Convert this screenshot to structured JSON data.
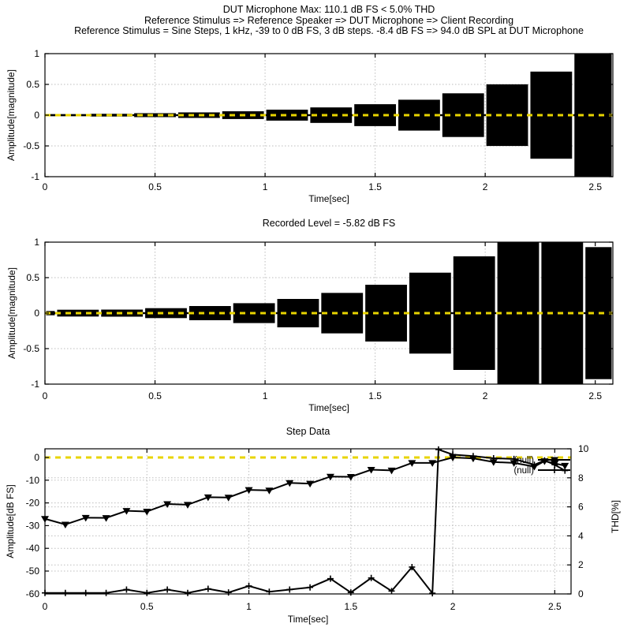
{
  "colors": {
    "series": "#000000",
    "zero_line": "#e8d400",
    "grid": "#bdbdbd",
    "background": "#ffffff",
    "text": "#000000"
  },
  "chart_data": [
    {
      "id": "stimulus-waveform",
      "type": "area",
      "title_lines": [
        "DUT Microphone Max: 110.1 dB FS < 5.0% THD",
        "Reference Stimulus => Reference Speaker => DUT Microphone => Client Recording",
        "Reference Stimulus = Sine Steps, 1 kHz, -39 to 0 dB FS, 3 dB steps. -8.4 dB FS => 94.0 dB SPL at DUT Microphone"
      ],
      "xlabel": "Time[sec]",
      "ylabel": "Amplitude[magnitude]",
      "xlim": [
        0,
        2.58
      ],
      "ylim": [
        -1,
        1
      ],
      "xtick_labels": [
        "0",
        "0.5",
        "1",
        "1.5",
        "2",
        "2.5"
      ],
      "xtick_values": [
        0,
        0.5,
        1,
        1.5,
        2,
        2.5
      ],
      "ytick_labels": [
        "-1",
        "-0.5",
        "0",
        "0.5",
        "1"
      ],
      "ytick_values": [
        -1,
        -0.5,
        0,
        0.5,
        1
      ],
      "grid_y_values": [
        -0.5,
        0.5
      ],
      "zero_line_value": 0,
      "steps": [
        {
          "t0": 0.0,
          "t1": 0.2,
          "amp": 0.016
        },
        {
          "t0": 0.2,
          "t1": 0.4,
          "amp": 0.022
        },
        {
          "t0": 0.4,
          "t1": 0.6,
          "amp": 0.032
        },
        {
          "t0": 0.6,
          "t1": 0.8,
          "amp": 0.045
        },
        {
          "t0": 0.8,
          "t1": 1.0,
          "amp": 0.063
        },
        {
          "t0": 1.0,
          "t1": 1.2,
          "amp": 0.089
        },
        {
          "t0": 1.2,
          "t1": 1.4,
          "amp": 0.126
        },
        {
          "t0": 1.4,
          "t1": 1.6,
          "amp": 0.178
        },
        {
          "t0": 1.6,
          "t1": 1.8,
          "amp": 0.251
        },
        {
          "t0": 1.8,
          "t1": 2.0,
          "amp": 0.355
        },
        {
          "t0": 2.0,
          "t1": 2.2,
          "amp": 0.501
        },
        {
          "t0": 2.2,
          "t1": 2.4,
          "amp": 0.708
        },
        {
          "t0": 2.4,
          "t1": 2.58,
          "amp": 1.0
        }
      ]
    },
    {
      "id": "recorded-waveform",
      "type": "area",
      "title": "Recorded Level = -5.82 dB FS",
      "xlabel": "Time[sec]",
      "ylabel": "Amplitude[magnitude]",
      "xlim": [
        0,
        2.58
      ],
      "ylim": [
        -1,
        1
      ],
      "xtick_labels": [
        "0",
        "0.5",
        "1",
        "1.5",
        "2",
        "2.5"
      ],
      "xtick_values": [
        0,
        0.5,
        1,
        1.5,
        2,
        2.5
      ],
      "ytick_labels": [
        "-1",
        "-0.5",
        "0",
        "0.5",
        "1"
      ],
      "ytick_values": [
        -1,
        -0.5,
        0,
        0.5,
        1
      ],
      "grid_y_values": [
        -0.5,
        0.5
      ],
      "zero_line_value": 0,
      "steps": [
        {
          "t0": 0.0,
          "t1": 0.05,
          "amp": 0.03
        },
        {
          "t0": 0.05,
          "t1": 0.25,
          "amp": 0.048
        },
        {
          "t0": 0.25,
          "t1": 0.45,
          "amp": 0.05
        },
        {
          "t0": 0.45,
          "t1": 0.65,
          "amp": 0.07
        },
        {
          "t0": 0.65,
          "t1": 0.85,
          "amp": 0.1
        },
        {
          "t0": 0.85,
          "t1": 1.05,
          "amp": 0.14
        },
        {
          "t0": 1.05,
          "t1": 1.25,
          "amp": 0.2
        },
        {
          "t0": 1.25,
          "t1": 1.45,
          "amp": 0.285
        },
        {
          "t0": 1.45,
          "t1": 1.65,
          "amp": 0.4
        },
        {
          "t0": 1.65,
          "t1": 1.85,
          "amp": 0.57
        },
        {
          "t0": 1.85,
          "t1": 2.05,
          "amp": 0.8
        },
        {
          "t0": 2.05,
          "t1": 2.25,
          "amp": 1.0
        },
        {
          "t0": 2.25,
          "t1": 2.45,
          "amp": 1.0
        },
        {
          "t0": 2.45,
          "t1": 2.58,
          "amp": 0.93
        }
      ]
    },
    {
      "id": "step-data",
      "type": "line",
      "title": "Step Data",
      "xlabel": "Time[sec]",
      "ylabel_left": "Amplitude[dB FS]",
      "ylabel_right": "THD[%]",
      "xlim": [
        0,
        2.58
      ],
      "ylim_left": [
        -60,
        3.8
      ],
      "ylim_right": [
        0,
        10
      ],
      "xtick_labels": [
        "0",
        "0.5",
        "1",
        "1.5",
        "2",
        "2.5"
      ],
      "xtick_values": [
        0,
        0.5,
        1,
        1.5,
        2,
        2.5
      ],
      "ytick_left_labels": [
        "0",
        "-10",
        "-20",
        "-30",
        "-40",
        "-50",
        "-60"
      ],
      "ytick_left_values": [
        0,
        -10,
        -20,
        -30,
        -40,
        -50,
        -60
      ],
      "ytick_right_labels": [
        "10",
        "8",
        "6",
        "4",
        "2",
        "0"
      ],
      "ytick_right_values": [
        10,
        8,
        6,
        4,
        2,
        0
      ],
      "grid_left_values": [
        -10,
        -20,
        -30,
        -40,
        -50
      ],
      "grid_right_values": [
        2,
        4,
        6,
        8
      ],
      "zero_line_value": 0,
      "legend": {
        "position": "top-right",
        "entries": [
          {
            "label": "(null)",
            "marker": "triangle-down"
          },
          {
            "label": "(null)",
            "marker": "plus"
          }
        ]
      },
      "series": [
        {
          "name": "(null)",
          "axis": "left",
          "marker": "triangle-down",
          "points": [
            [
              0.0,
              -27
            ],
            [
              0.1,
              -29.5
            ],
            [
              0.2,
              -26.5
            ],
            [
              0.3,
              -26.6
            ],
            [
              0.4,
              -23.5
            ],
            [
              0.5,
              -23.8
            ],
            [
              0.6,
              -20.5
            ],
            [
              0.7,
              -20.8
            ],
            [
              0.8,
              -17.5
            ],
            [
              0.9,
              -17.6
            ],
            [
              1.0,
              -14.3
            ],
            [
              1.1,
              -14.5
            ],
            [
              1.2,
              -11.2
            ],
            [
              1.3,
              -11.5
            ],
            [
              1.4,
              -8.4
            ],
            [
              1.5,
              -8.5
            ],
            [
              1.6,
              -5.4
            ],
            [
              1.7,
              -5.7
            ],
            [
              1.8,
              -2.4
            ],
            [
              1.9,
              -2.4
            ],
            [
              2.0,
              0.0
            ],
            [
              2.1,
              -0.4
            ],
            [
              2.2,
              -2.0
            ],
            [
              2.3,
              -2.4
            ],
            [
              2.4,
              -4.0
            ],
            [
              2.45,
              -1.6
            ],
            [
              2.5,
              -2.6
            ],
            [
              2.55,
              -3.6
            ]
          ]
        },
        {
          "name": "(null)",
          "axis": "right",
          "marker": "plus",
          "points": [
            [
              0.0,
              0.07
            ],
            [
              0.1,
              0.07
            ],
            [
              0.2,
              0.07
            ],
            [
              0.3,
              0.07
            ],
            [
              0.4,
              0.3
            ],
            [
              0.5,
              0.07
            ],
            [
              0.6,
              0.3
            ],
            [
              0.7,
              0.07
            ],
            [
              0.8,
              0.35
            ],
            [
              0.9,
              0.1
            ],
            [
              1.0,
              0.55
            ],
            [
              1.1,
              0.15
            ],
            [
              1.2,
              0.3
            ],
            [
              1.3,
              0.45
            ],
            [
              1.4,
              1.05
            ],
            [
              1.5,
              0.1
            ],
            [
              1.6,
              1.1
            ],
            [
              1.7,
              0.2
            ],
            [
              1.8,
              1.85
            ],
            [
              1.9,
              0.05
            ],
            [
              1.93,
              9.95
            ],
            [
              2.0,
              9.6
            ],
            [
              2.1,
              9.5
            ],
            [
              2.2,
              9.35
            ],
            [
              2.3,
              9.3
            ],
            [
              2.4,
              8.9
            ],
            [
              2.45,
              9.2
            ],
            [
              2.5,
              8.9
            ],
            [
              2.55,
              8.5
            ]
          ]
        }
      ]
    }
  ]
}
